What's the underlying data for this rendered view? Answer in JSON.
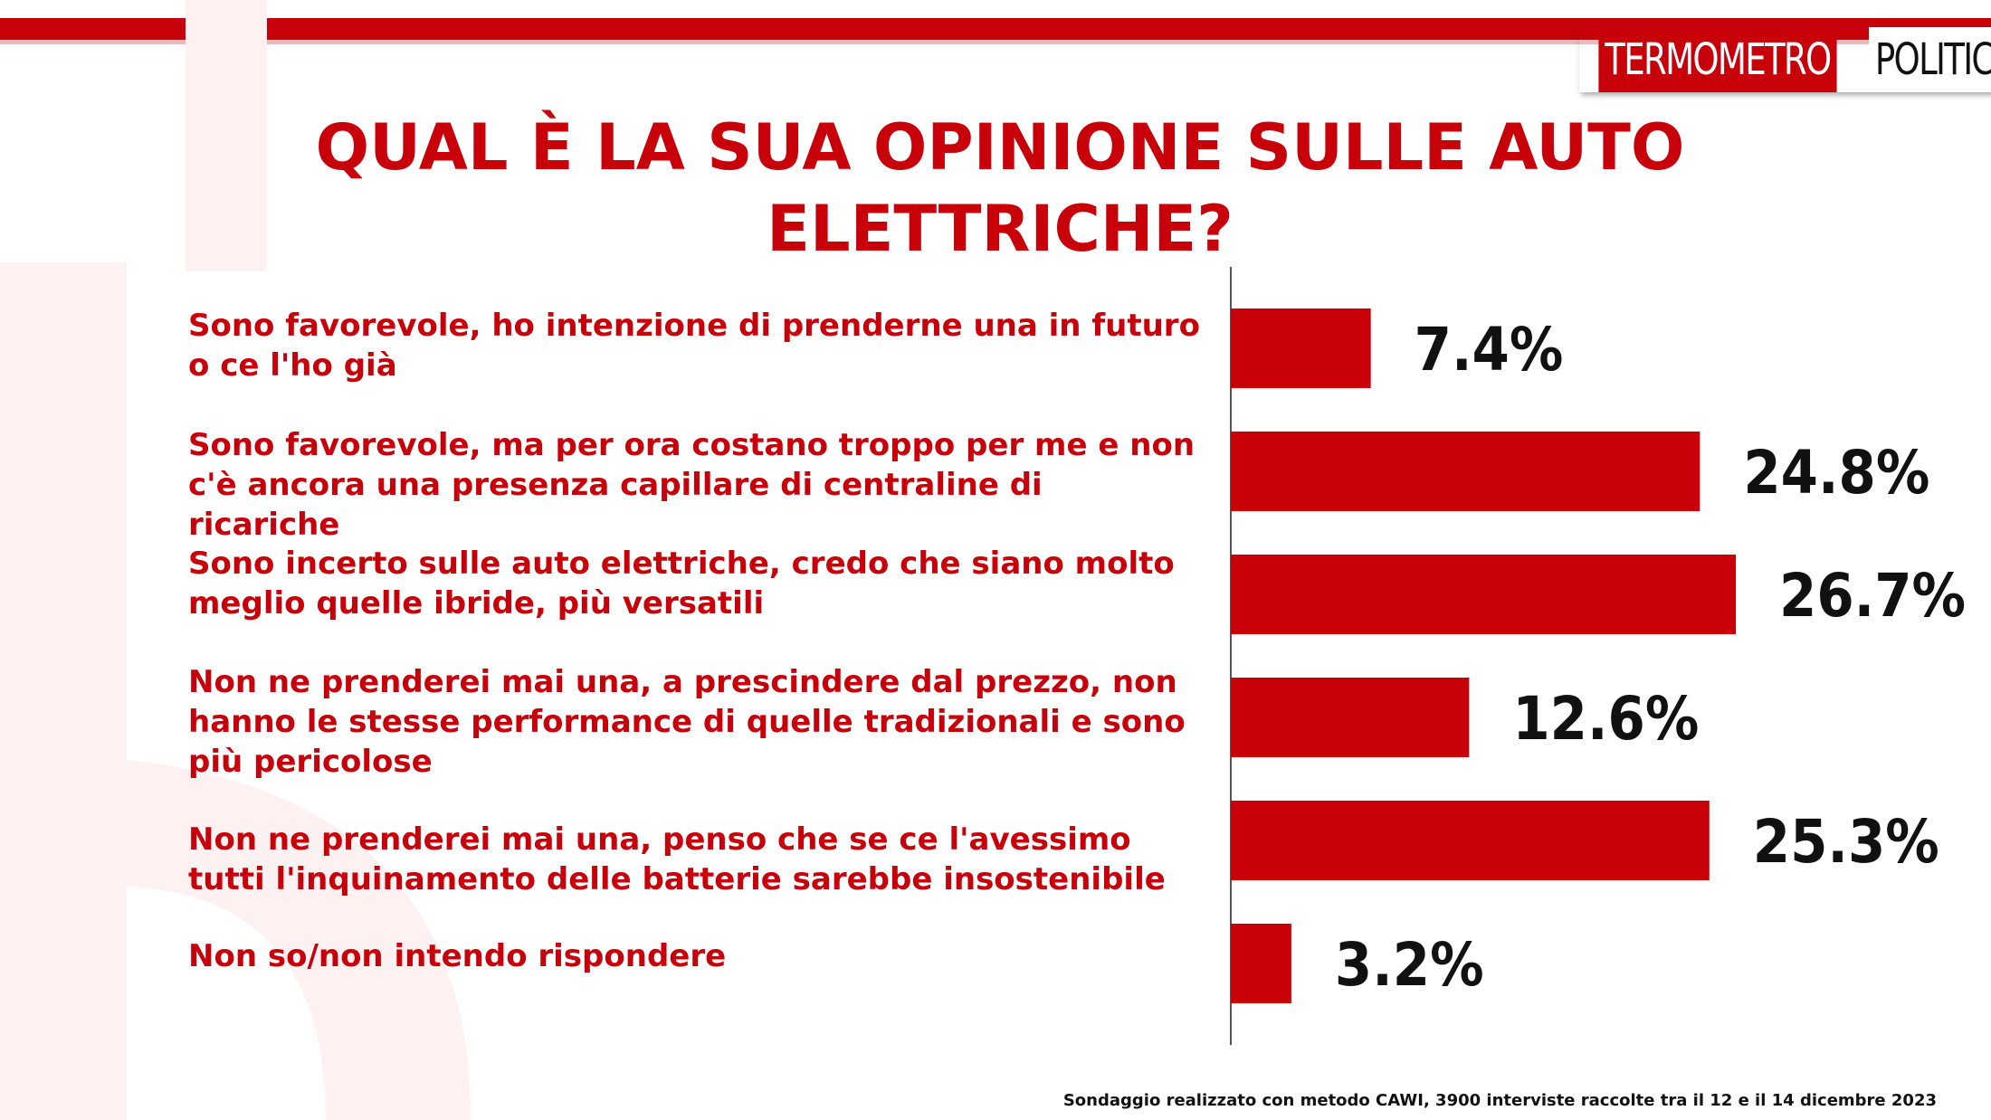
{
  "brand": {
    "part1": "TERMOMETRO",
    "part2": "POLITICO",
    "accent_color": "#c8000a"
  },
  "footer": {
    "note": "Sondaggio realizzato con metodo CAWI, 3900 interviste raccolte tra il 12 e il 14 dicembre 2023"
  },
  "chart_data": {
    "type": "bar",
    "orientation": "horizontal",
    "title": "QUAL È LA SUA OPINIONE SULLE AUTO ELETTRICHE?",
    "categories": [
      "Sono favorevole, ho intenzione di prenderne una in futuro o ce l'ho già",
      "Sono favorevole, ma per ora costano troppo per me e non c'è ancora una presenza capillare di centraline di ricariche",
      "Sono incerto sulle auto elettriche, credo che siano molto meglio quelle ibride, più versatili",
      "Non ne prenderei mai una, a prescindere dal prezzo, non hanno le stesse performance di quelle tradizionali e sono più pericolose",
      "Non ne prenderei mai una, penso che se ce l'avessimo tutti l'inquinamento delle batterie sarebbe insostenibile",
      "Non so/non intendo rispondere"
    ],
    "values": [
      7.4,
      24.8,
      26.7,
      12.6,
      25.3,
      3.2
    ],
    "value_labels": [
      "7.4%",
      "24.8%",
      "26.7%",
      "12.6%",
      "25.3%",
      "3.2%"
    ],
    "unit": "%",
    "bar_color": "#c8000a",
    "xlim": [
      0,
      30
    ],
    "grid": false,
    "legend": "none"
  }
}
